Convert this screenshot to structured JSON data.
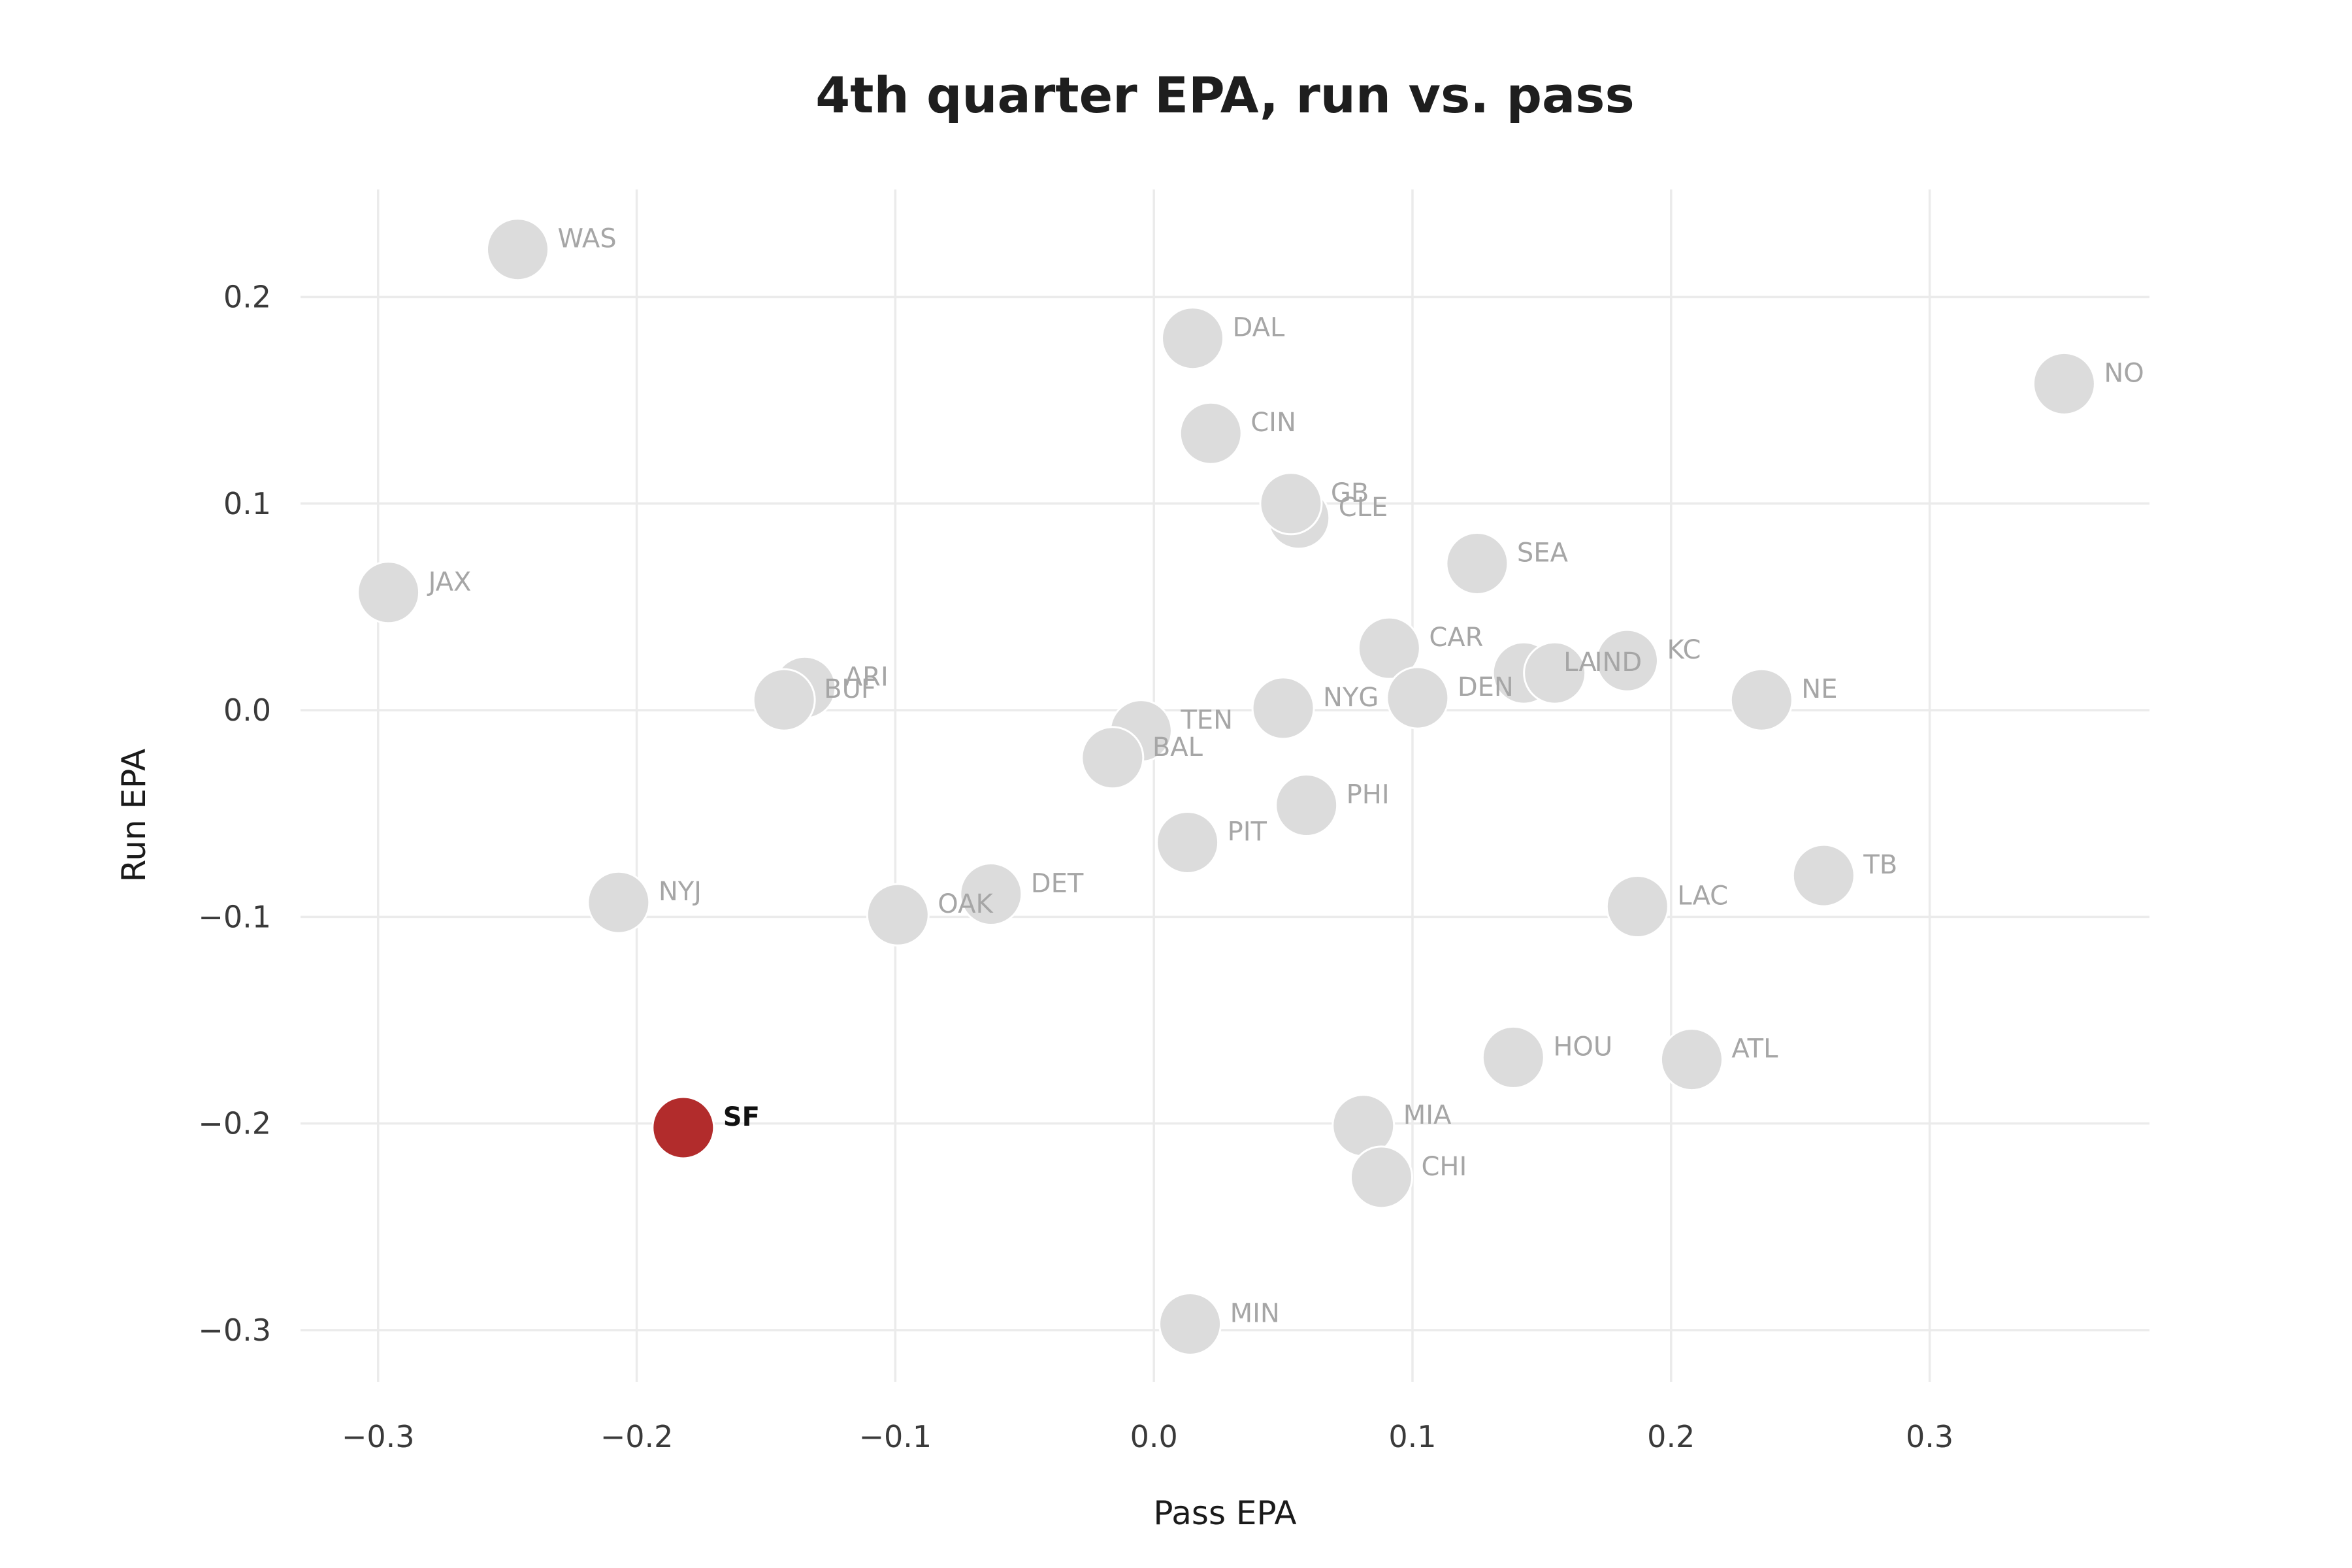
{
  "chart_data": {
    "type": "scatter",
    "title": "4th quarter EPA, run vs. pass",
    "xlabel": "Pass EPA",
    "ylabel": "Run EPA",
    "xlim": [
      -0.33,
      0.385
    ],
    "ylim": [
      -0.325,
      0.252
    ],
    "xticks": [
      -0.3,
      -0.2,
      -0.1,
      0.0,
      0.1,
      0.2,
      0.3
    ],
    "xtick_labels": [
      "−0.3",
      "−0.2",
      "−0.1",
      "0.0",
      "0.1",
      "0.2",
      "0.3"
    ],
    "yticks": [
      0.2,
      0.1,
      0.0,
      -0.1,
      -0.2,
      -0.3
    ],
    "ytick_labels": [
      "0.2",
      "0.1",
      "0.0",
      "−0.1",
      "−0.2",
      "−0.3"
    ],
    "grid": true,
    "colors": {
      "default_point": "#dcdcdc",
      "default_label": "#a6a6a6",
      "highlight_point": "#b22c2c",
      "highlight_label": "#111111",
      "point_stroke": "#ffffff"
    },
    "points": [
      {
        "team": "WAS",
        "x": -0.246,
        "y": 0.223
      },
      {
        "team": "DAL",
        "x": 0.015,
        "y": 0.18
      },
      {
        "team": "NO",
        "x": 0.352,
        "y": 0.158
      },
      {
        "team": "CIN",
        "x": 0.022,
        "y": 0.134
      },
      {
        "team": "CLE",
        "x": 0.056,
        "y": 0.093
      },
      {
        "team": "GB",
        "x": 0.053,
        "y": 0.1
      },
      {
        "team": "SEA",
        "x": 0.125,
        "y": 0.071
      },
      {
        "team": "JAX",
        "x": -0.296,
        "y": 0.057
      },
      {
        "team": "CAR",
        "x": 0.091,
        "y": 0.03
      },
      {
        "team": "KC",
        "x": 0.183,
        "y": 0.024
      },
      {
        "team": "LA",
        "x": 0.143,
        "y": 0.018
      },
      {
        "team": "IND",
        "x": 0.155,
        "y": 0.018
      },
      {
        "team": "ARI",
        "x": -0.135,
        "y": 0.011
      },
      {
        "team": "BUF",
        "x": -0.143,
        "y": 0.005
      },
      {
        "team": "DEN",
        "x": 0.102,
        "y": 0.006
      },
      {
        "team": "NE",
        "x": 0.235,
        "y": 0.005
      },
      {
        "team": "NYG",
        "x": 0.05,
        "y": 0.001
      },
      {
        "team": "TEN",
        "x": -0.005,
        "y": -0.01
      },
      {
        "team": "BAL",
        "x": -0.016,
        "y": -0.023
      },
      {
        "team": "PHI",
        "x": 0.059,
        "y": -0.046
      },
      {
        "team": "PIT",
        "x": 0.013,
        "y": -0.064
      },
      {
        "team": "TB",
        "x": 0.259,
        "y": -0.08
      },
      {
        "team": "DET",
        "x": -0.063,
        "y": -0.089
      },
      {
        "team": "NYJ",
        "x": -0.207,
        "y": -0.093
      },
      {
        "team": "LAC",
        "x": 0.187,
        "y": -0.095
      },
      {
        "team": "OAK",
        "x": -0.099,
        "y": -0.099
      },
      {
        "team": "HOU",
        "x": 0.139,
        "y": -0.168
      },
      {
        "team": "ATL",
        "x": 0.208,
        "y": -0.169
      },
      {
        "team": "MIA",
        "x": 0.081,
        "y": -0.201
      },
      {
        "team": "SF",
        "x": -0.182,
        "y": -0.202,
        "highlight": true
      },
      {
        "team": "CHI",
        "x": 0.088,
        "y": -0.226
      },
      {
        "team": "MIN",
        "x": 0.014,
        "y": -0.297
      }
    ]
  }
}
